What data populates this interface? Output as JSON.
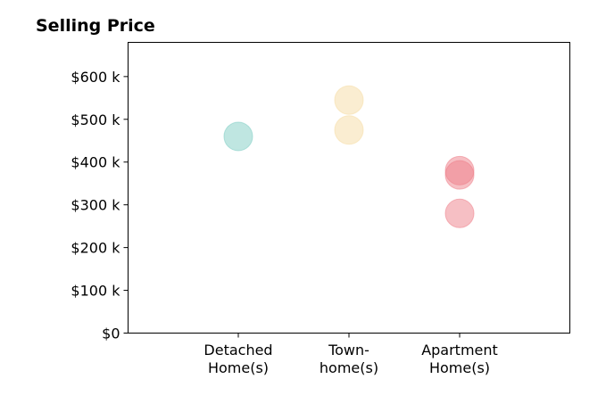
{
  "chart_data": {
    "type": "scatter",
    "title": "Selling Price",
    "xlabel": "",
    "ylabel": "",
    "categories": [
      [
        "Detached",
        "Home(s)"
      ],
      [
        "Town-",
        "home(s)"
      ],
      [
        "Apartment",
        "Home(s)"
      ]
    ],
    "ylim": [
      0,
      680000
    ],
    "yticks": [
      0,
      100000,
      200000,
      300000,
      400000,
      500000,
      600000
    ],
    "ytick_labels": [
      "$0",
      "$100 k",
      "$200 k",
      "$300 k",
      "$400 k",
      "$500 k",
      "$600 k"
    ],
    "grid": false,
    "legend": "none",
    "series": [
      {
        "category": 0,
        "color": "#7fcdc4",
        "values": [
          460000
        ]
      },
      {
        "category": 1,
        "color": "#f5dca4",
        "values": [
          545000,
          475000
        ]
      },
      {
        "category": 2,
        "color": "#ee7f8a",
        "values": [
          380000,
          370000,
          280000
        ]
      }
    ]
  }
}
